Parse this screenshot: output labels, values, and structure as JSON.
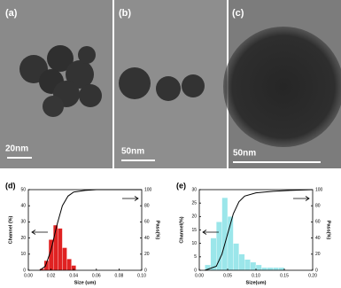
{
  "images": [
    {
      "label": "(a)",
      "scale": "20nm"
    },
    {
      "label": "(b)",
      "scale": "50nm"
    },
    {
      "label": "(c)",
      "scale": "50nm"
    }
  ],
  "chart_data": [
    {
      "type": "histogram",
      "title": "(d)",
      "xlabel": "Size (um)",
      "ylabel": "Channel (%)",
      "y2label": "Pass(%)",
      "bins": [
        0.01,
        0.014,
        0.018,
        0.022,
        0.026,
        0.03,
        0.034,
        0.038,
        0.042
      ],
      "counts": [
        1,
        6,
        19,
        28,
        26,
        14,
        7,
        3
      ],
      "color": "#e02222",
      "cumulative": {
        "x": [
          0.01,
          0.015,
          0.02,
          0.025,
          0.03,
          0.035,
          0.04,
          0.05,
          0.06,
          0.08,
          0.1
        ],
        "values": [
          0,
          5,
          25,
          55,
          80,
          92,
          97,
          99,
          100,
          100,
          100
        ],
        "axis": "y2",
        "color": "#000000"
      },
      "xlim": [
        0,
        0.1
      ],
      "ylim": [
        0,
        50
      ],
      "y2lim": [
        0,
        100
      ],
      "xticks": [
        {
          "value": 0,
          "label": "0.00"
        },
        {
          "value": 0.02,
          "label": "0.02"
        },
        {
          "value": 0.04,
          "label": "0.04"
        },
        {
          "value": 0.06,
          "label": "0.06"
        },
        {
          "value": 0.08,
          "label": "0.08"
        },
        {
          "value": 0.1,
          "label": "0.10"
        }
      ],
      "yticks": [
        0,
        10,
        20,
        30,
        40,
        50
      ],
      "y2ticks": [
        0,
        20,
        40,
        60,
        80,
        100
      ]
    },
    {
      "type": "histogram",
      "title": "(e)",
      "xlabel": "Size(um)",
      "ylabel": "Channel(%)",
      "y2label": "Pass(%)",
      "bins": [
        0.01,
        0.02,
        0.03,
        0.04,
        0.05,
        0.06,
        0.07,
        0.08,
        0.09,
        0.1,
        0.11,
        0.12,
        0.13,
        0.14,
        0.15
      ],
      "counts": [
        2,
        12,
        18,
        27,
        20,
        10,
        6,
        4,
        3,
        2,
        1,
        1,
        1,
        1
      ],
      "color": "#9be6ea",
      "cumulative": {
        "x": [
          0.01,
          0.03,
          0.04,
          0.05,
          0.06,
          0.07,
          0.08,
          0.1,
          0.13,
          0.16,
          0.2
        ],
        "values": [
          0,
          5,
          20,
          45,
          70,
          85,
          92,
          96,
          98,
          99,
          100
        ],
        "axis": "y2",
        "color": "#000000"
      },
      "xlim": [
        0,
        0.2
      ],
      "ylim": [
        0,
        30
      ],
      "y2lim": [
        0,
        100
      ],
      "xticks": [
        {
          "value": 0,
          "label": "0.00"
        },
        {
          "value": 0.05,
          "label": "0.05"
        },
        {
          "value": 0.1,
          "label": "0.10"
        },
        {
          "value": 0.15,
          "label": "0.15"
        },
        {
          "value": 0.2,
          "label": "0.20"
        }
      ],
      "yticks": [
        0,
        5,
        10,
        15,
        20,
        25,
        30
      ],
      "y2ticks": [
        0,
        20,
        40,
        60,
        80,
        100
      ]
    }
  ]
}
